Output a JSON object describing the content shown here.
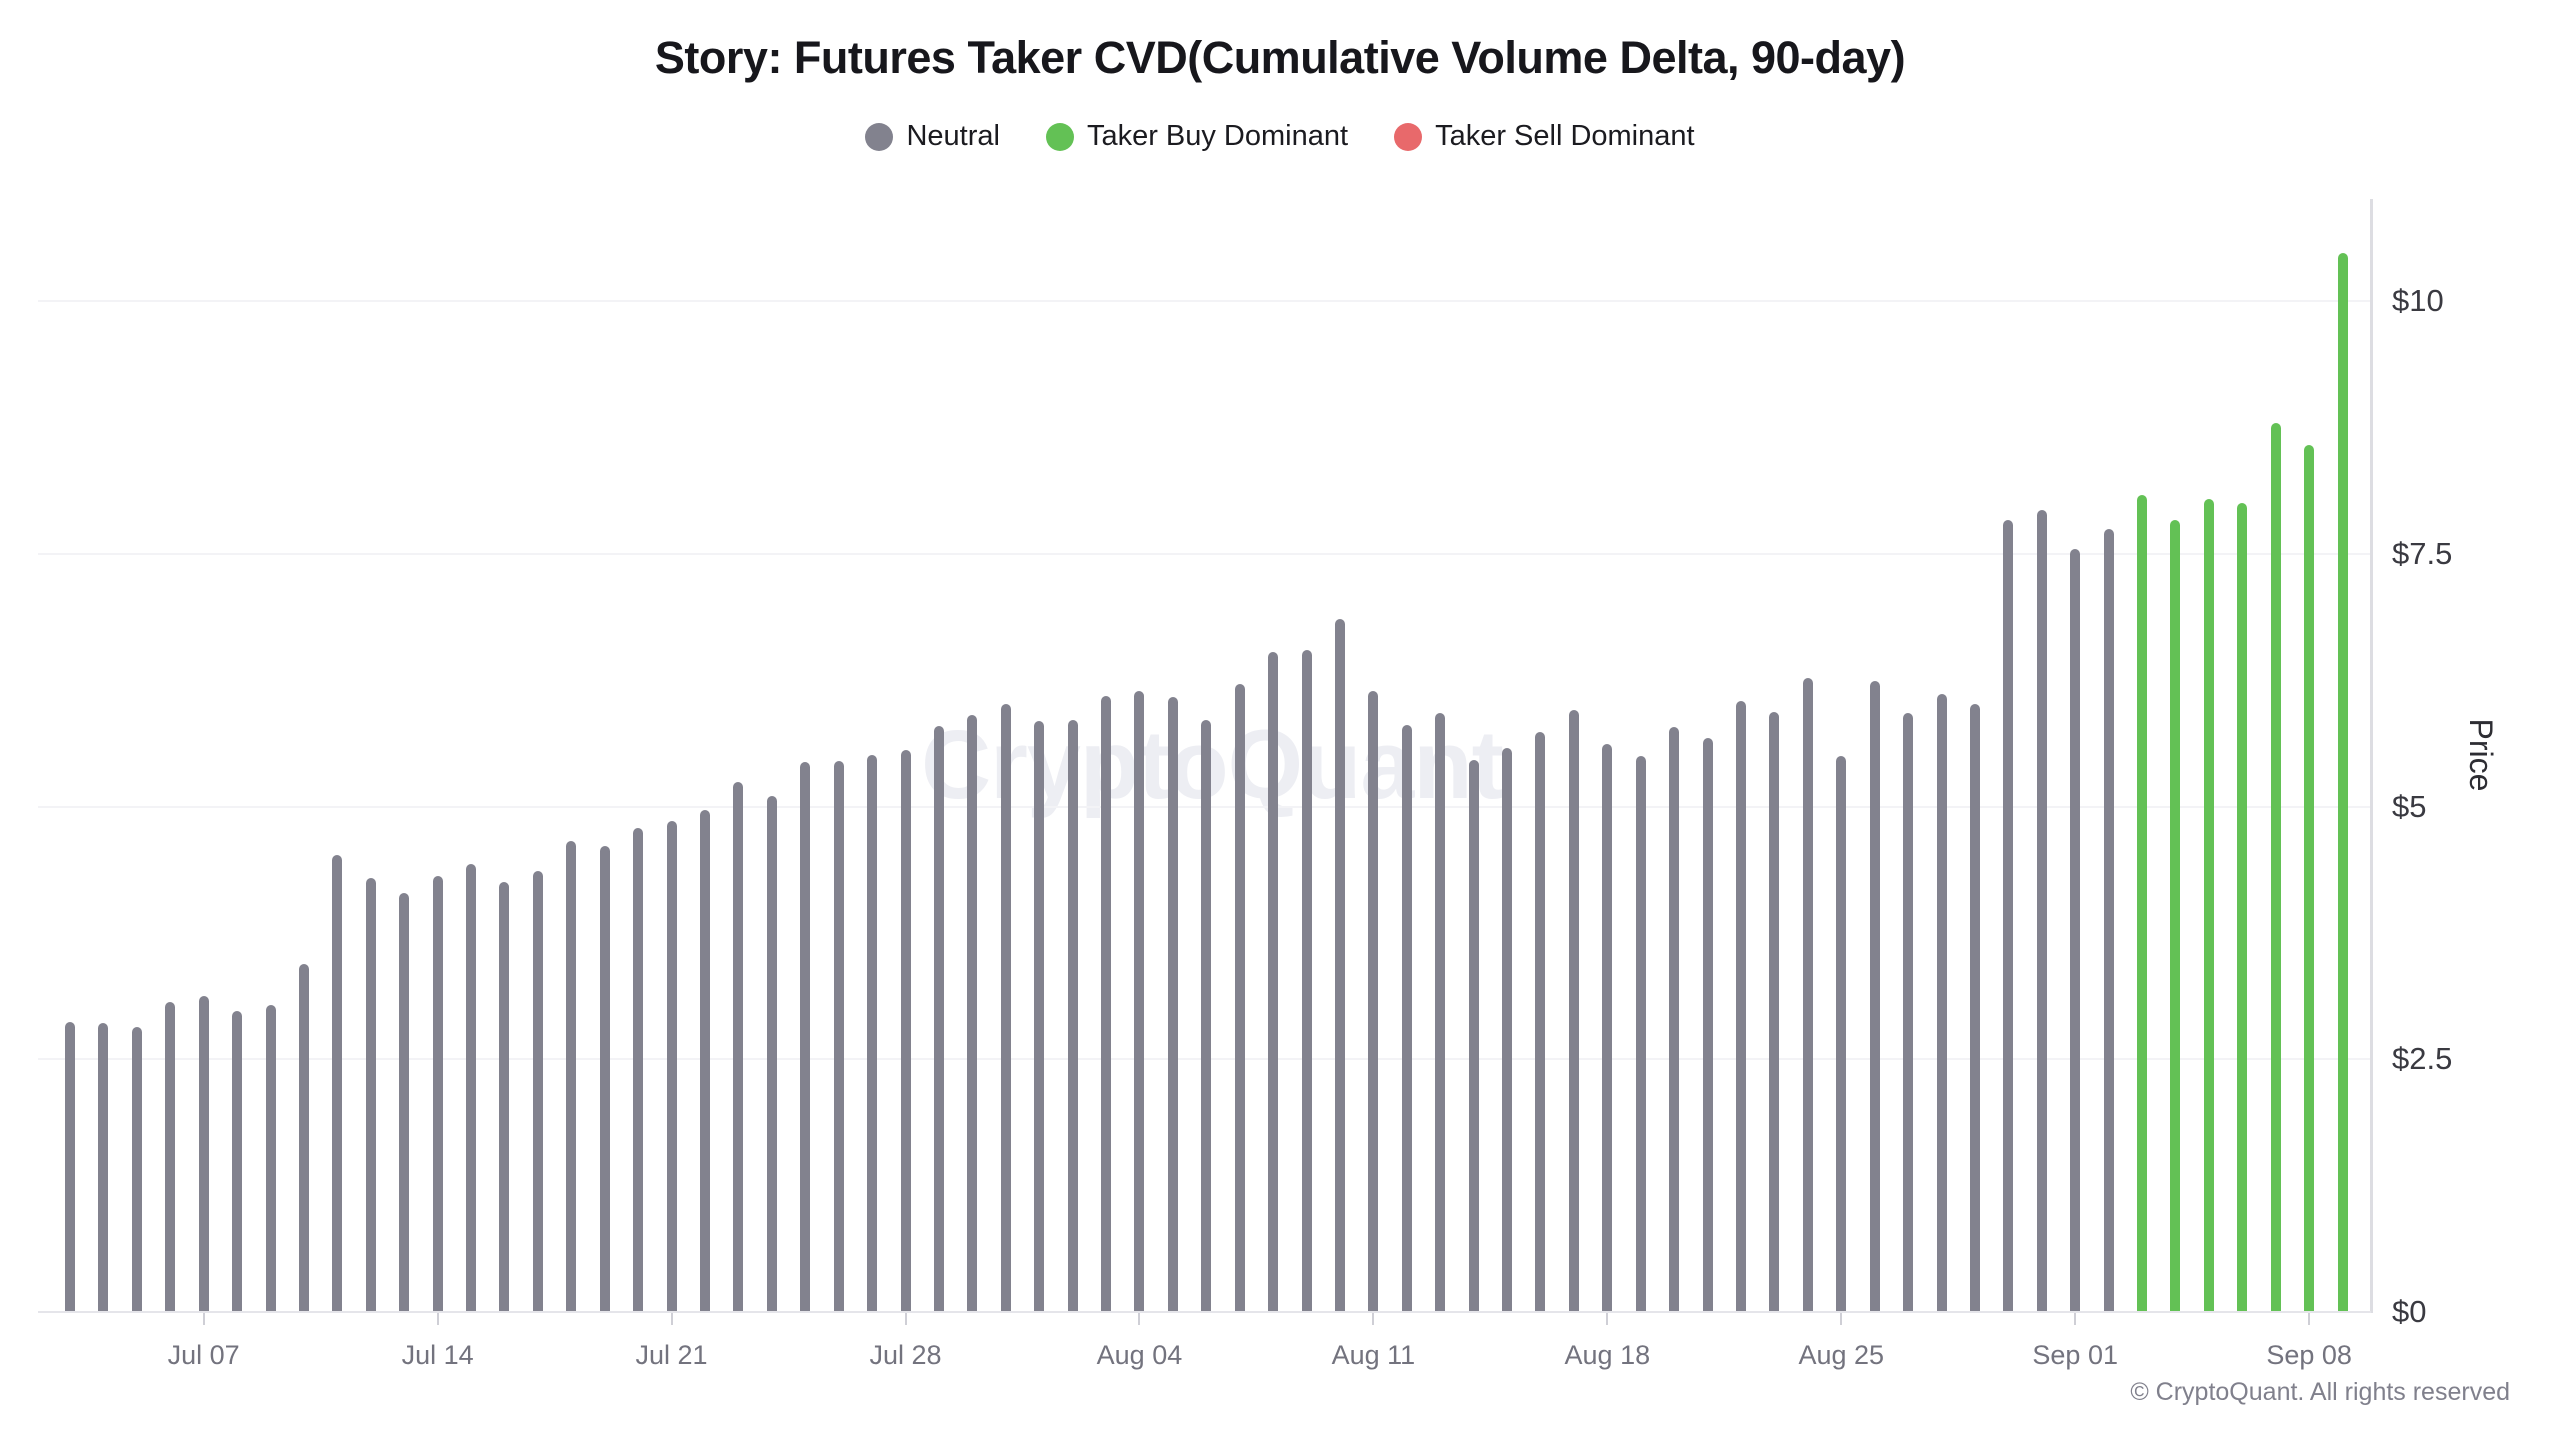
{
  "title": "Story: Futures Taker CVD(Cumulative Volume Delta, 90-day)",
  "watermark": "CryptoQuant",
  "footer": "© CryptoQuant. All rights reserved",
  "legend": [
    {
      "label": "Neutral",
      "status": "neutral"
    },
    {
      "label": "Taker Buy Dominant",
      "status": "buy"
    },
    {
      "label": "Taker Sell Dominant",
      "status": "sell"
    }
  ],
  "status_colors": {
    "neutral": "#82828e",
    "buy": "#63c155",
    "sell": "#e8696b"
  },
  "y_axis": {
    "label": "Price",
    "tick_labels": [
      "$0",
      "$2.5",
      "$5",
      "$7.5",
      "$10"
    ],
    "tick_values": [
      0,
      2.5,
      5,
      7.5,
      10
    ]
  },
  "x_axis": {
    "ticks": [
      {
        "label": "Jul 07",
        "index": 4
      },
      {
        "label": "Jul 14",
        "index": 11
      },
      {
        "label": "Jul 21",
        "index": 18
      },
      {
        "label": "Jul 28",
        "index": 25
      },
      {
        "label": "Aug 04",
        "index": 32
      },
      {
        "label": "Aug 11",
        "index": 39
      },
      {
        "label": "Aug 18",
        "index": 46
      },
      {
        "label": "Aug 25",
        "index": 53
      },
      {
        "label": "Sep 01",
        "index": 60
      },
      {
        "label": "Sep 08",
        "index": 67
      }
    ]
  },
  "chart_data": {
    "type": "bar",
    "title": "Story: Futures Taker CVD(Cumulative Volume Delta, 90-day)",
    "xlabel": "",
    "ylabel": "Price",
    "ylim": [
      0,
      11
    ],
    "grid": true,
    "legend_position": "top",
    "categories": [
      "Jul 03",
      "Jul 04",
      "Jul 05",
      "Jul 06",
      "Jul 07",
      "Jul 08",
      "Jul 09",
      "Jul 10",
      "Jul 11",
      "Jul 12",
      "Jul 13",
      "Jul 14",
      "Jul 15",
      "Jul 16",
      "Jul 17",
      "Jul 18",
      "Jul 19",
      "Jul 20",
      "Jul 21",
      "Jul 22",
      "Jul 23",
      "Jul 24",
      "Jul 25",
      "Jul 26",
      "Jul 27",
      "Jul 28",
      "Jul 29",
      "Jul 30",
      "Jul 31",
      "Aug 01",
      "Aug 02",
      "Aug 03",
      "Aug 04",
      "Aug 05",
      "Aug 06",
      "Aug 07",
      "Aug 08",
      "Aug 09",
      "Aug 10",
      "Aug 11",
      "Aug 12",
      "Aug 13",
      "Aug 14",
      "Aug 15",
      "Aug 16",
      "Aug 17",
      "Aug 18",
      "Aug 19",
      "Aug 20",
      "Aug 21",
      "Aug 22",
      "Aug 23",
      "Aug 24",
      "Aug 25",
      "Aug 26",
      "Aug 27",
      "Aug 28",
      "Aug 29",
      "Aug 30",
      "Aug 31",
      "Sep 01",
      "Sep 02",
      "Sep 03",
      "Sep 04",
      "Sep 05",
      "Sep 06",
      "Sep 07",
      "Sep 08",
      "Sep 09"
    ],
    "values": [
      2.87,
      2.86,
      2.82,
      3.07,
      3.13,
      2.98,
      3.04,
      3.44,
      4.52,
      4.29,
      4.14,
      4.31,
      4.43,
      4.25,
      4.36,
      4.66,
      4.61,
      4.79,
      4.86,
      4.97,
      5.24,
      5.1,
      5.44,
      5.45,
      5.51,
      5.56,
      5.8,
      5.91,
      6.01,
      5.85,
      5.86,
      6.09,
      6.14,
      6.08,
      5.86,
      6.21,
      6.53,
      6.55,
      6.86,
      6.14,
      5.81,
      5.93,
      5.46,
      5.58,
      5.74,
      5.96,
      5.62,
      5.5,
      5.79,
      5.68,
      6.04,
      5.94,
      6.27,
      5.5,
      6.24,
      5.93,
      6.11,
      6.01,
      7.83,
      7.93,
      7.55,
      7.75,
      8.08,
      7.83,
      8.04,
      8.0,
      8.79,
      8.58,
      10.48
    ],
    "statuses": [
      "neutral",
      "neutral",
      "neutral",
      "neutral",
      "neutral",
      "neutral",
      "neutral",
      "neutral",
      "neutral",
      "neutral",
      "neutral",
      "neutral",
      "neutral",
      "neutral",
      "neutral",
      "neutral",
      "neutral",
      "neutral",
      "neutral",
      "neutral",
      "neutral",
      "neutral",
      "neutral",
      "neutral",
      "neutral",
      "neutral",
      "neutral",
      "neutral",
      "neutral",
      "neutral",
      "neutral",
      "neutral",
      "neutral",
      "neutral",
      "neutral",
      "neutral",
      "neutral",
      "neutral",
      "neutral",
      "neutral",
      "neutral",
      "neutral",
      "neutral",
      "neutral",
      "neutral",
      "neutral",
      "neutral",
      "neutral",
      "neutral",
      "neutral",
      "neutral",
      "neutral",
      "neutral",
      "neutral",
      "neutral",
      "neutral",
      "neutral",
      "neutral",
      "neutral",
      "neutral",
      "neutral",
      "neutral",
      "buy",
      "buy",
      "buy",
      "buy",
      "buy",
      "buy",
      "buy"
    ]
  }
}
